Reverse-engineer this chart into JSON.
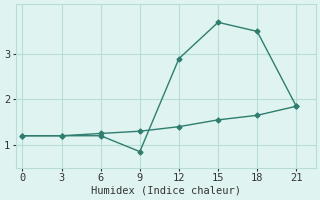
{
  "xlabel": "Humidex (Indice chaleur)",
  "line1_x": [
    0,
    3,
    6,
    9,
    12,
    15,
    18,
    21
  ],
  "line1_y": [
    1.2,
    1.2,
    1.2,
    0.85,
    2.9,
    3.7,
    3.5,
    1.85
  ],
  "line2_x": [
    0,
    3,
    6,
    9,
    12,
    15,
    18,
    21
  ],
  "line2_y": [
    1.2,
    1.2,
    1.25,
    1.3,
    1.4,
    1.55,
    1.65,
    1.85
  ],
  "line_color": "#2e7d6e",
  "bg_color": "#dff4f0",
  "grid_color": "#b8ddd8",
  "xlim": [
    -0.5,
    22.5
  ],
  "ylim": [
    0.5,
    4.1
  ],
  "xticks": [
    0,
    3,
    6,
    9,
    12,
    15,
    18,
    21
  ],
  "yticks": [
    1,
    2,
    3
  ],
  "marker": "D",
  "markersize": 2.5,
  "linewidth": 1.0,
  "xlabel_fontsize": 7.5,
  "tick_fontsize": 7.5
}
